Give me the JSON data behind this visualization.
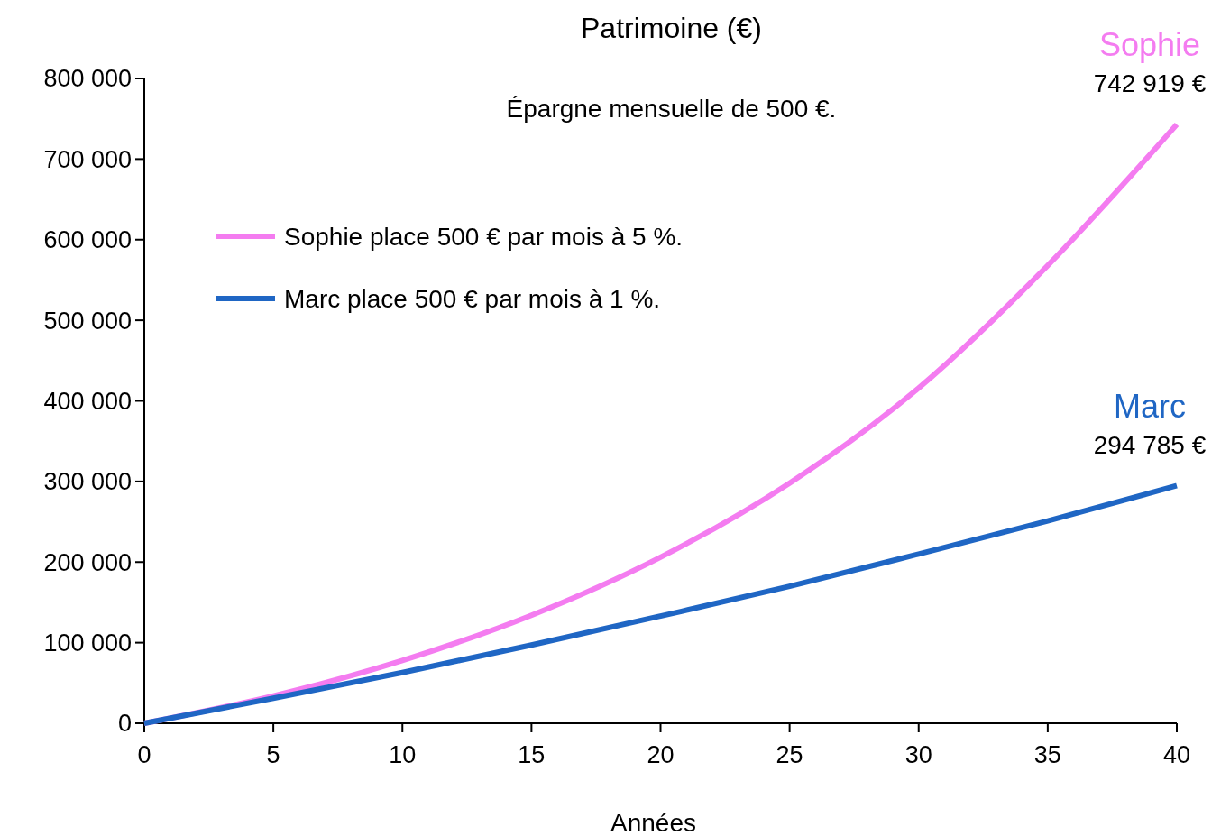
{
  "chart_data": {
    "type": "line",
    "title": "Patrimoine (€)",
    "subtitle": "Épargne mensuelle de 500 €.",
    "xlabel": "Années",
    "x": [
      0,
      5,
      10,
      15,
      20,
      25,
      30,
      35,
      40
    ],
    "series": [
      {
        "name": "Sophie place 500 € par mois à 5 %.",
        "color": "#f47cf0",
        "values": [
          0,
          34000,
          78000,
          134000,
          206000,
          298000,
          416000,
          568000,
          742919
        ]
      },
      {
        "name": "Marc place 500 € par mois à 1 %.",
        "color": "#1f66c4",
        "values": [
          0,
          31000,
          63000,
          97000,
          133000,
          170000,
          210000,
          251000,
          294785
        ]
      }
    ],
    "xlim": [
      0,
      40
    ],
    "xticks": [
      0,
      5,
      10,
      15,
      20,
      25,
      30,
      35,
      40
    ],
    "ylim": [
      0,
      800000
    ],
    "yticks": [
      0,
      {
        "value": 100000,
        "label": "100 000"
      },
      {
        "value": 200000,
        "label": "200 000"
      },
      {
        "value": 300000,
        "label": "300 000"
      },
      {
        "value": 400000,
        "label": "400 000"
      },
      {
        "value": 500000,
        "label": "500 000"
      },
      {
        "value": 600000,
        "label": "600 000"
      },
      {
        "value": 700000,
        "label": "700 000"
      },
      {
        "value": 800000,
        "label": "800 000"
      }
    ],
    "annotations": [
      "Sophie",
      "742 919 €",
      "Marc",
      "294 785 €"
    ],
    "legend": "top left",
    "grid": false,
    "marker": "none",
    "line_style": "solid"
  }
}
